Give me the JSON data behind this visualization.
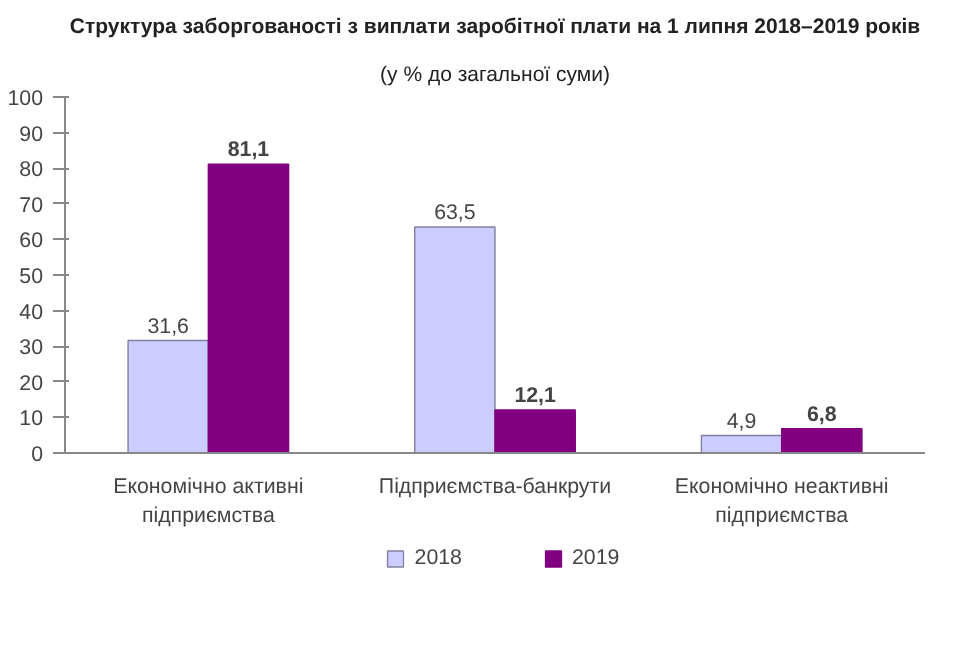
{
  "chart_data": {
    "type": "bar",
    "title": "Структура заборгованості з виплати заробітної плати на 1 липня 2018–2019 років",
    "subtitle": "(у % до загальної суми)",
    "categories": [
      "Економічно активні\nпідприємства",
      "Підприємства-банкрути",
      "Економічно неактивні\nпідприємства"
    ],
    "series": [
      {
        "name": "2018",
        "color": "#ccccff",
        "values": [
          31.6,
          63.5,
          4.9
        ],
        "value_labels": [
          "31,6",
          "63,5",
          "4,9"
        ]
      },
      {
        "name": "2019",
        "color": "#800080",
        "values": [
          81.1,
          12.1,
          6.8
        ],
        "value_labels": [
          "81,1",
          "12,1",
          "6,8"
        ]
      }
    ],
    "ylim": [
      0,
      100
    ],
    "yticks": [
      0,
      10,
      20,
      30,
      40,
      50,
      60,
      70,
      80,
      90,
      100
    ],
    "grid": false,
    "legend": "bottom"
  }
}
